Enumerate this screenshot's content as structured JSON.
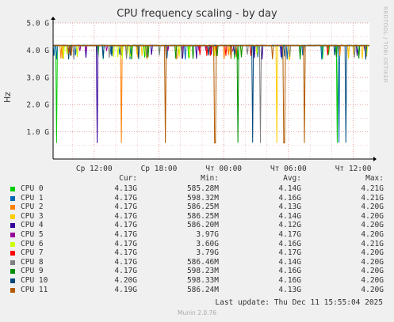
{
  "chart_data": {
    "type": "line",
    "title": "CPU frequency scaling - by day",
    "ylabel": "Hz",
    "ylim": [
      0,
      5000000000
    ],
    "y_ticks": [
      "1.0 G",
      "2.0 G",
      "3.0 G",
      "4.0 G",
      "5.0 G"
    ],
    "y_tick_values": [
      1000000000,
      2000000000,
      3000000000,
      4000000000,
      5000000000
    ],
    "x_ticks": [
      "Ср 12:00",
      "Ср 18:00",
      "Чт 00:00",
      "Чт 06:00",
      "Чт 12:00"
    ],
    "x_tick_hours": [
      12,
      18,
      24,
      30,
      36
    ],
    "x_range_hours": [
      8.2,
      37.5
    ],
    "grid": true,
    "legend_headers": [
      "Cur:",
      "Min:",
      "Avg:",
      "Max:"
    ],
    "series": [
      {
        "name": "CPU 0",
        "color": "#00cc00",
        "cur": "4.13G",
        "min": "585.28M",
        "avg": "4.14G",
        "max": "4.21G",
        "dips": [
          [
            8.5,
            0.59
          ],
          [
            34.5,
            0.6
          ]
        ]
      },
      {
        "name": "CPU 1",
        "color": "#0066b3",
        "cur": "4.17G",
        "min": "598.32M",
        "avg": "4.16G",
        "max": "4.21G",
        "dips": [
          [
            34.7,
            0.6
          ]
        ]
      },
      {
        "name": "CPU 2",
        "color": "#ff8000",
        "cur": "4.17G",
        "min": "586.25M",
        "avg": "4.13G",
        "max": "4.20G",
        "dips": [
          [
            14.5,
            0.59
          ]
        ]
      },
      {
        "name": "CPU 3",
        "color": "#ffcc00",
        "cur": "4.17G",
        "min": "586.25M",
        "avg": "4.14G",
        "max": "4.20G",
        "dips": [
          [
            28.9,
            0.59
          ]
        ]
      },
      {
        "name": "CPU 4",
        "color": "#330099",
        "cur": "4.17G",
        "min": "586.20M",
        "avg": "4.12G",
        "max": "4.20G",
        "dips": [
          [
            12.3,
            0.59
          ]
        ]
      },
      {
        "name": "CPU 5",
        "color": "#990099",
        "cur": "4.17G",
        "min": "3.97G",
        "avg": "4.17G",
        "max": "4.20G",
        "dips": []
      },
      {
        "name": "CPU 6",
        "color": "#ccff00",
        "cur": "4.17G",
        "min": "3.60G",
        "avg": "4.16G",
        "max": "4.21G",
        "dips": []
      },
      {
        "name": "CPU 7",
        "color": "#ff0000",
        "cur": "4.17G",
        "min": "3.79G",
        "avg": "4.17G",
        "max": "4.20G",
        "dips": []
      },
      {
        "name": "CPU 8",
        "color": "#808080",
        "cur": "4.17G",
        "min": "586.46M",
        "avg": "4.14G",
        "max": "4.20G",
        "dips": [
          [
            27.4,
            0.59
          ]
        ]
      },
      {
        "name": "CPU 9",
        "color": "#008f00",
        "cur": "4.17G",
        "min": "598.23M",
        "avg": "4.16G",
        "max": "4.20G",
        "dips": [
          [
            25.3,
            0.6
          ]
        ]
      },
      {
        "name": "CPU 10",
        "color": "#00487d",
        "cur": "4.20G",
        "min": "598.33M",
        "avg": "4.16G",
        "max": "4.20G",
        "dips": [
          [
            26.7,
            0.6
          ],
          [
            35.3,
            0.6
          ]
        ]
      },
      {
        "name": "CPU 11",
        "color": "#b35a00",
        "cur": "4.19G",
        "min": "586.24M",
        "avg": "4.13G",
        "max": "4.20G",
        "dips": [
          [
            18.6,
            0.59
          ],
          [
            23.2,
            0.59
          ],
          [
            29.6,
            0.59
          ],
          [
            31.5,
            0.59
          ]
        ]
      }
    ]
  },
  "last_update": "Last update: Thu Dec 11 15:55:04 2025",
  "footer": "Munin 2.0.76",
  "side_credit": "RRDTOOL / TOBI OETIKER"
}
